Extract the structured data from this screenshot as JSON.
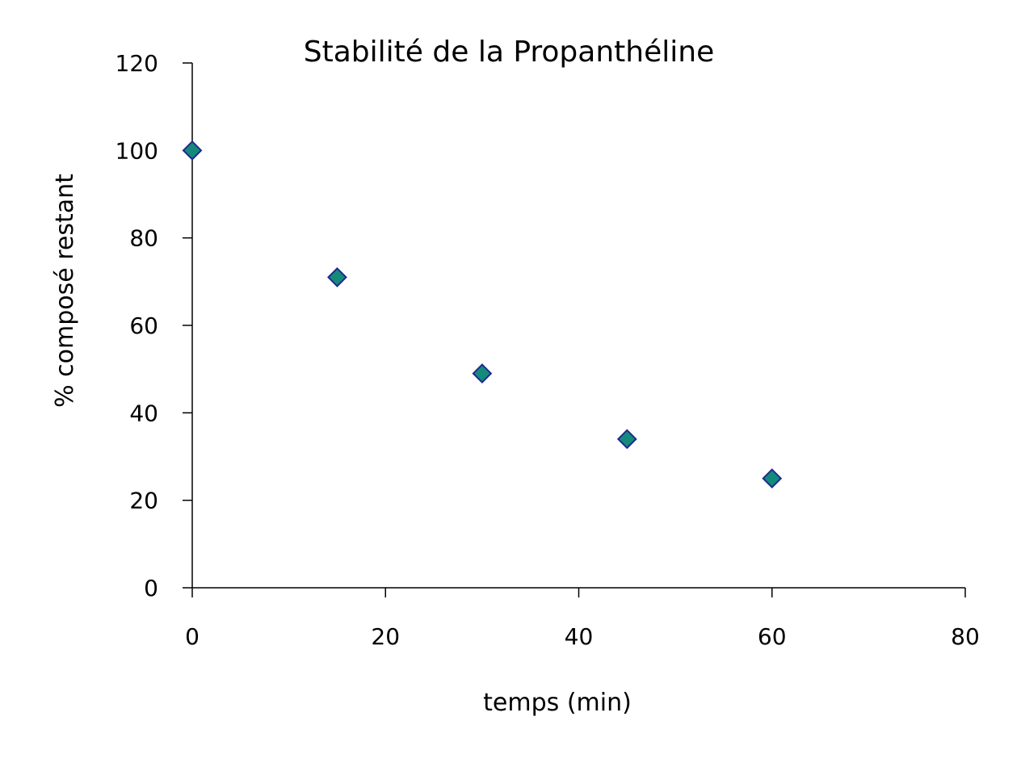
{
  "chart_data": {
    "type": "scatter",
    "title": "Stabilité de la Propanthéline",
    "xlabel": "temps (min)",
    "ylabel": "% composé restant",
    "xlim": [
      0,
      80
    ],
    "ylim": [
      0,
      120
    ],
    "xticks": [
      0,
      20,
      40,
      60,
      80
    ],
    "yticks": [
      0,
      20,
      40,
      60,
      80,
      100,
      120
    ],
    "grid": false,
    "marker": "diamond",
    "marker_fill": "#138a7c",
    "marker_stroke": "#1f2a8a",
    "x": [
      0,
      15,
      30,
      45,
      60
    ],
    "y": [
      100,
      71,
      49,
      34,
      25
    ]
  }
}
